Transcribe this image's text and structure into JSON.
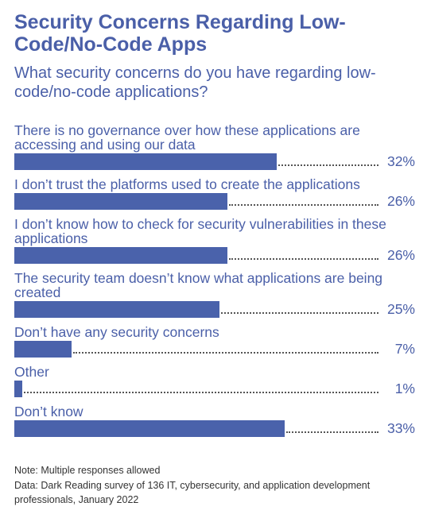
{
  "chart_data": {
    "type": "bar",
    "title": "Security Concerns Regarding Low-Code/No-Code Apps",
    "subtitle": "What security concerns do you have regarding low-code/no-code applications?",
    "categories": [
      "There is no governance over how these applications are accessing and using our data",
      "I don’t trust the platforms used to create the applications",
      "I don’t know how to check for security vulnerabilities in these applications",
      "The security team doesn’t know what applications are being created",
      "Don’t have any security concerns",
      "Other",
      "Don’t know"
    ],
    "values": [
      32,
      26,
      26,
      25,
      7,
      1,
      33
    ],
    "value_labels": [
      "32%",
      "26%",
      "26%",
      "25%",
      "7%",
      "1%",
      "33%"
    ],
    "color": "#4a62ab",
    "notes": [
      "Note: Multiple responses allowed",
      "Data: Dark Reading survey of 136 IT, cybersecurity, and application development professionals, January 2022"
    ]
  }
}
